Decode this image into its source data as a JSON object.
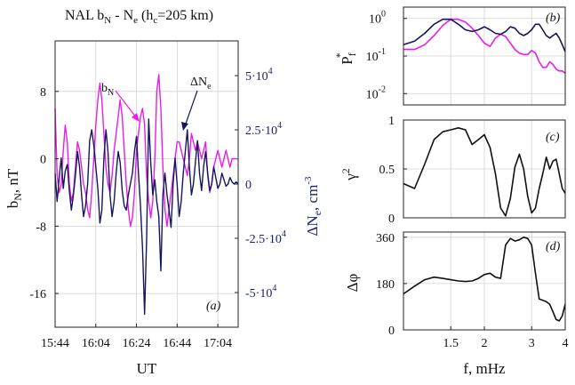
{
  "title": {
    "main": "NAL b",
    "sub1": "N",
    "mid": " - N",
    "sub2": "e",
    "paren": " (h",
    "sub3": "c",
    "end": "=205 km)"
  },
  "colors": {
    "magenta": "#e81ee8",
    "navy": "#16165c",
    "navy_label": "#1b1f6b",
    "axis": "#222222"
  },
  "chart_data": [
    {
      "type": "line",
      "panel_label": "(a)",
      "xlabel": "UT",
      "x_ticks": [
        "15:44",
        "16:04",
        "16:24",
        "16:44",
        "17:04"
      ],
      "x_range": [
        0,
        90
      ],
      "left_axis": {
        "label": "b",
        "label_sub": "N",
        "label_unit": ", nT",
        "ticks": [
          "8",
          "0",
          "-8",
          "-16"
        ],
        "tick_values": [
          8,
          0,
          -8,
          -16
        ],
        "range": [
          -20,
          14
        ]
      },
      "right_axis": {
        "label": "ΔN",
        "label_sub": "e",
        "label_unit": ", cm",
        "label_sup": "-3",
        "ticks": [
          "5·10",
          "2.5·10",
          "0",
          "-2.5·10",
          "-5·10"
        ],
        "tick_sups": [
          "4",
          "4",
          "",
          "4",
          "4"
        ],
        "tick_values": [
          50000,
          25000,
          0,
          -25000,
          -50000
        ],
        "range": [
          -66000,
          66000
        ]
      },
      "annotations": [
        {
          "text": "b",
          "sub": "N",
          "target": "magenta series peak"
        },
        {
          "text": "ΔN",
          "sub": "e",
          "target": "navy series peak"
        }
      ],
      "series": [
        {
          "name": "b_N",
          "axis": "left",
          "t": [
            0,
            1,
            2,
            3,
            4,
            5,
            6,
            7,
            8,
            9,
            10,
            11,
            12,
            13,
            14,
            15,
            16,
            17,
            18,
            19,
            20,
            21,
            22,
            23,
            24,
            25,
            26,
            27,
            28,
            29,
            30,
            31,
            32,
            33,
            34,
            35,
            36,
            37,
            38,
            39,
            40,
            41,
            42,
            43,
            44,
            45,
            46,
            47,
            48,
            49,
            50,
            51,
            52,
            53,
            54,
            55,
            56,
            57,
            58,
            59,
            60,
            61,
            62,
            63,
            64,
            65,
            66,
            67,
            68,
            69,
            70,
            71,
            72,
            73,
            74,
            75,
            76,
            77,
            78,
            79,
            80,
            81,
            82,
            83,
            84,
            85,
            86,
            87,
            88,
            89,
            90
          ],
          "values": [
            6,
            -2,
            -4,
            -3,
            1,
            4,
            2,
            -3,
            -5,
            -4,
            -1,
            2,
            1,
            -1,
            -3,
            -4,
            -6,
            -7,
            -4,
            0,
            4,
            7,
            9,
            7,
            3,
            -1,
            -3,
            -4,
            -2,
            1,
            3,
            5,
            7,
            5,
            1,
            -3,
            -6,
            -8,
            -7,
            -4,
            1,
            3,
            5,
            6,
            4,
            -2,
            -5,
            -7,
            -5,
            0,
            8,
            10,
            6,
            -1,
            -6,
            -8,
            -6,
            -4,
            -2,
            0,
            2,
            2,
            1,
            0,
            -1,
            -2,
            0,
            3,
            2,
            1,
            2,
            1,
            0,
            1,
            2,
            -2,
            -4,
            -3,
            -1,
            0,
            1,
            0,
            -1,
            0,
            1,
            0,
            -1,
            0,
            0,
            0,
            0
          ]
        },
        {
          "name": "ΔN_e",
          "axis": "right",
          "t": [
            0,
            1,
            2,
            3,
            4,
            5,
            6,
            7,
            8,
            9,
            10,
            11,
            12,
            13,
            14,
            15,
            16,
            17,
            18,
            19,
            20,
            21,
            22,
            23,
            24,
            25,
            26,
            27,
            28,
            29,
            30,
            31,
            32,
            33,
            34,
            35,
            36,
            37,
            38,
            39,
            40,
            41,
            42,
            43,
            44,
            45,
            46,
            47,
            48,
            49,
            50,
            51,
            52,
            53,
            54,
            55,
            56,
            57,
            58,
            59,
            60,
            61,
            62,
            63,
            64,
            65,
            66,
            67,
            68,
            69,
            70,
            71,
            72,
            73,
            74,
            75,
            76,
            77,
            78,
            79,
            80,
            81,
            82,
            83,
            84,
            85,
            86,
            87,
            88,
            89,
            90
          ],
          "values": [
            5000,
            -8000,
            3000,
            12000,
            -2000,
            6000,
            9000,
            -3000,
            -12000,
            -5000,
            4000,
            15000,
            8000,
            -5000,
            -15000,
            -10000,
            0,
            20000,
            25000,
            18000,
            8000,
            -2000,
            -18000,
            -12000,
            12000,
            25000,
            15000,
            -5000,
            -15000,
            -8000,
            5000,
            15000,
            10000,
            -3000,
            -10000,
            -12000,
            -5000,
            0,
            5000,
            15000,
            22000,
            5000,
            -10000,
            -30000,
            -60000,
            -25000,
            30000,
            10000,
            -5000,
            2000,
            -8000,
            -15000,
            -40000,
            -5000,
            5000,
            -5000,
            -12000,
            -20000,
            0,
            12000,
            0,
            -15000,
            -8000,
            5000,
            15000,
            25000,
            8000,
            -5000,
            0,
            10000,
            20000,
            5000,
            -3000,
            8000,
            15000,
            5000,
            -3000,
            0,
            8000,
            3000,
            -2000,
            0,
            5000,
            2000,
            -1000,
            0,
            3000,
            1000,
            0,
            1000,
            0
          ]
        }
      ]
    },
    {
      "type": "line",
      "panel_label": "(b)",
      "ylabel": "P",
      "ylabel_sub": "f",
      "ylabel_sup": "*",
      "y_scale": "log",
      "y_ticks": [
        "10",
        "10",
        "10"
      ],
      "y_tick_exps": [
        "0",
        "-1",
        "-2"
      ],
      "y_tick_values": [
        1,
        0.1,
        0.01
      ],
      "y_range": [
        0.005,
        2.0
      ],
      "x_range": [
        1.0,
        4.0
      ],
      "series": [
        {
          "name": "P_f* b_N",
          "f": [
            1.0,
            1.1,
            1.2,
            1.3,
            1.4,
            1.5,
            1.6,
            1.7,
            1.8,
            1.9,
            2.0,
            2.1,
            2.2,
            2.3,
            2.4,
            2.5,
            2.6,
            2.7,
            2.8,
            2.9,
            3.0,
            3.1,
            3.2,
            3.3,
            3.4,
            3.5,
            3.6,
            3.7,
            3.8,
            3.9,
            4.0
          ],
          "values": [
            0.15,
            0.15,
            0.2,
            0.35,
            0.65,
            0.95,
            0.95,
            0.8,
            0.55,
            0.35,
            0.22,
            0.18,
            0.3,
            0.38,
            0.33,
            0.22,
            0.15,
            0.12,
            0.11,
            0.11,
            0.14,
            0.12,
            0.07,
            0.05,
            0.05,
            0.07,
            0.06,
            0.045,
            0.04,
            0.04,
            0.035
          ]
        },
        {
          "name": "P_f* ΔN_e",
          "f": [
            1.0,
            1.1,
            1.2,
            1.3,
            1.4,
            1.5,
            1.6,
            1.7,
            1.8,
            1.9,
            2.0,
            2.1,
            2.2,
            2.3,
            2.4,
            2.5,
            2.6,
            2.7,
            2.8,
            2.9,
            3.0,
            3.1,
            3.2,
            3.3,
            3.4,
            3.5,
            3.6,
            3.7,
            3.8,
            3.9,
            4.0
          ],
          "values": [
            0.2,
            0.25,
            0.4,
            0.7,
            0.95,
            0.95,
            0.7,
            0.5,
            0.45,
            0.5,
            0.6,
            0.5,
            0.4,
            0.38,
            0.45,
            0.6,
            0.55,
            0.4,
            0.35,
            0.4,
            0.5,
            0.7,
            0.7,
            0.5,
            0.35,
            0.3,
            0.35,
            0.4,
            0.3,
            0.2,
            0.13
          ]
        }
      ]
    },
    {
      "type": "line",
      "panel_label": "(c)",
      "ylabel": "γ",
      "ylabel_sup": "2",
      "y_ticks": [
        "1",
        "0.5",
        "0"
      ],
      "y_tick_values": [
        1,
        0.5,
        0
      ],
      "y_range": [
        0,
        1
      ],
      "x_range": [
        1.0,
        4.0
      ],
      "series": [
        {
          "name": "γ²",
          "f": [
            1.0,
            1.1,
            1.2,
            1.3,
            1.4,
            1.5,
            1.6,
            1.7,
            1.8,
            1.9,
            2.0,
            2.1,
            2.2,
            2.3,
            2.4,
            2.5,
            2.6,
            2.7,
            2.8,
            2.9,
            3.0,
            3.1,
            3.2,
            3.3,
            3.4,
            3.5,
            3.6,
            3.7,
            3.8,
            3.9,
            4.0
          ],
          "values": [
            0.35,
            0.3,
            0.55,
            0.8,
            0.88,
            0.9,
            0.92,
            0.9,
            0.75,
            0.8,
            0.85,
            0.72,
            0.45,
            0.1,
            0.02,
            0.2,
            0.52,
            0.65,
            0.5,
            0.22,
            0.05,
            0.1,
            0.3,
            0.45,
            0.62,
            0.5,
            0.58,
            0.6,
            0.45,
            0.3,
            0.25
          ]
        }
      ]
    },
    {
      "type": "line",
      "panel_label": "(d)",
      "ylabel": "Δφ",
      "xlabel": "f, mHz",
      "y_ticks": [
        "360",
        "180",
        "0"
      ],
      "y_tick_values": [
        360,
        180,
        0
      ],
      "y_range": [
        0,
        380
      ],
      "x_ticks": [
        "1.5",
        "2",
        "3",
        "4"
      ],
      "x_tick_values": [
        1.5,
        2,
        3,
        4
      ],
      "x_range": [
        1.0,
        4.0
      ],
      "series": [
        {
          "name": "Δφ",
          "f": [
            1.0,
            1.1,
            1.2,
            1.3,
            1.4,
            1.5,
            1.6,
            1.7,
            1.8,
            1.9,
            2.0,
            2.1,
            2.2,
            2.3,
            2.4,
            2.5,
            2.6,
            2.7,
            2.8,
            2.9,
            3.0,
            3.1,
            3.2,
            3.3,
            3.4,
            3.5,
            3.6,
            3.7,
            3.8,
            3.9,
            4.0
          ],
          "values": [
            140,
            170,
            195,
            205,
            200,
            195,
            190,
            188,
            190,
            200,
            215,
            220,
            205,
            200,
            330,
            355,
            345,
            350,
            360,
            355,
            330,
            220,
            120,
            115,
            110,
            100,
            70,
            40,
            35,
            55,
            100
          ]
        }
      ]
    }
  ]
}
